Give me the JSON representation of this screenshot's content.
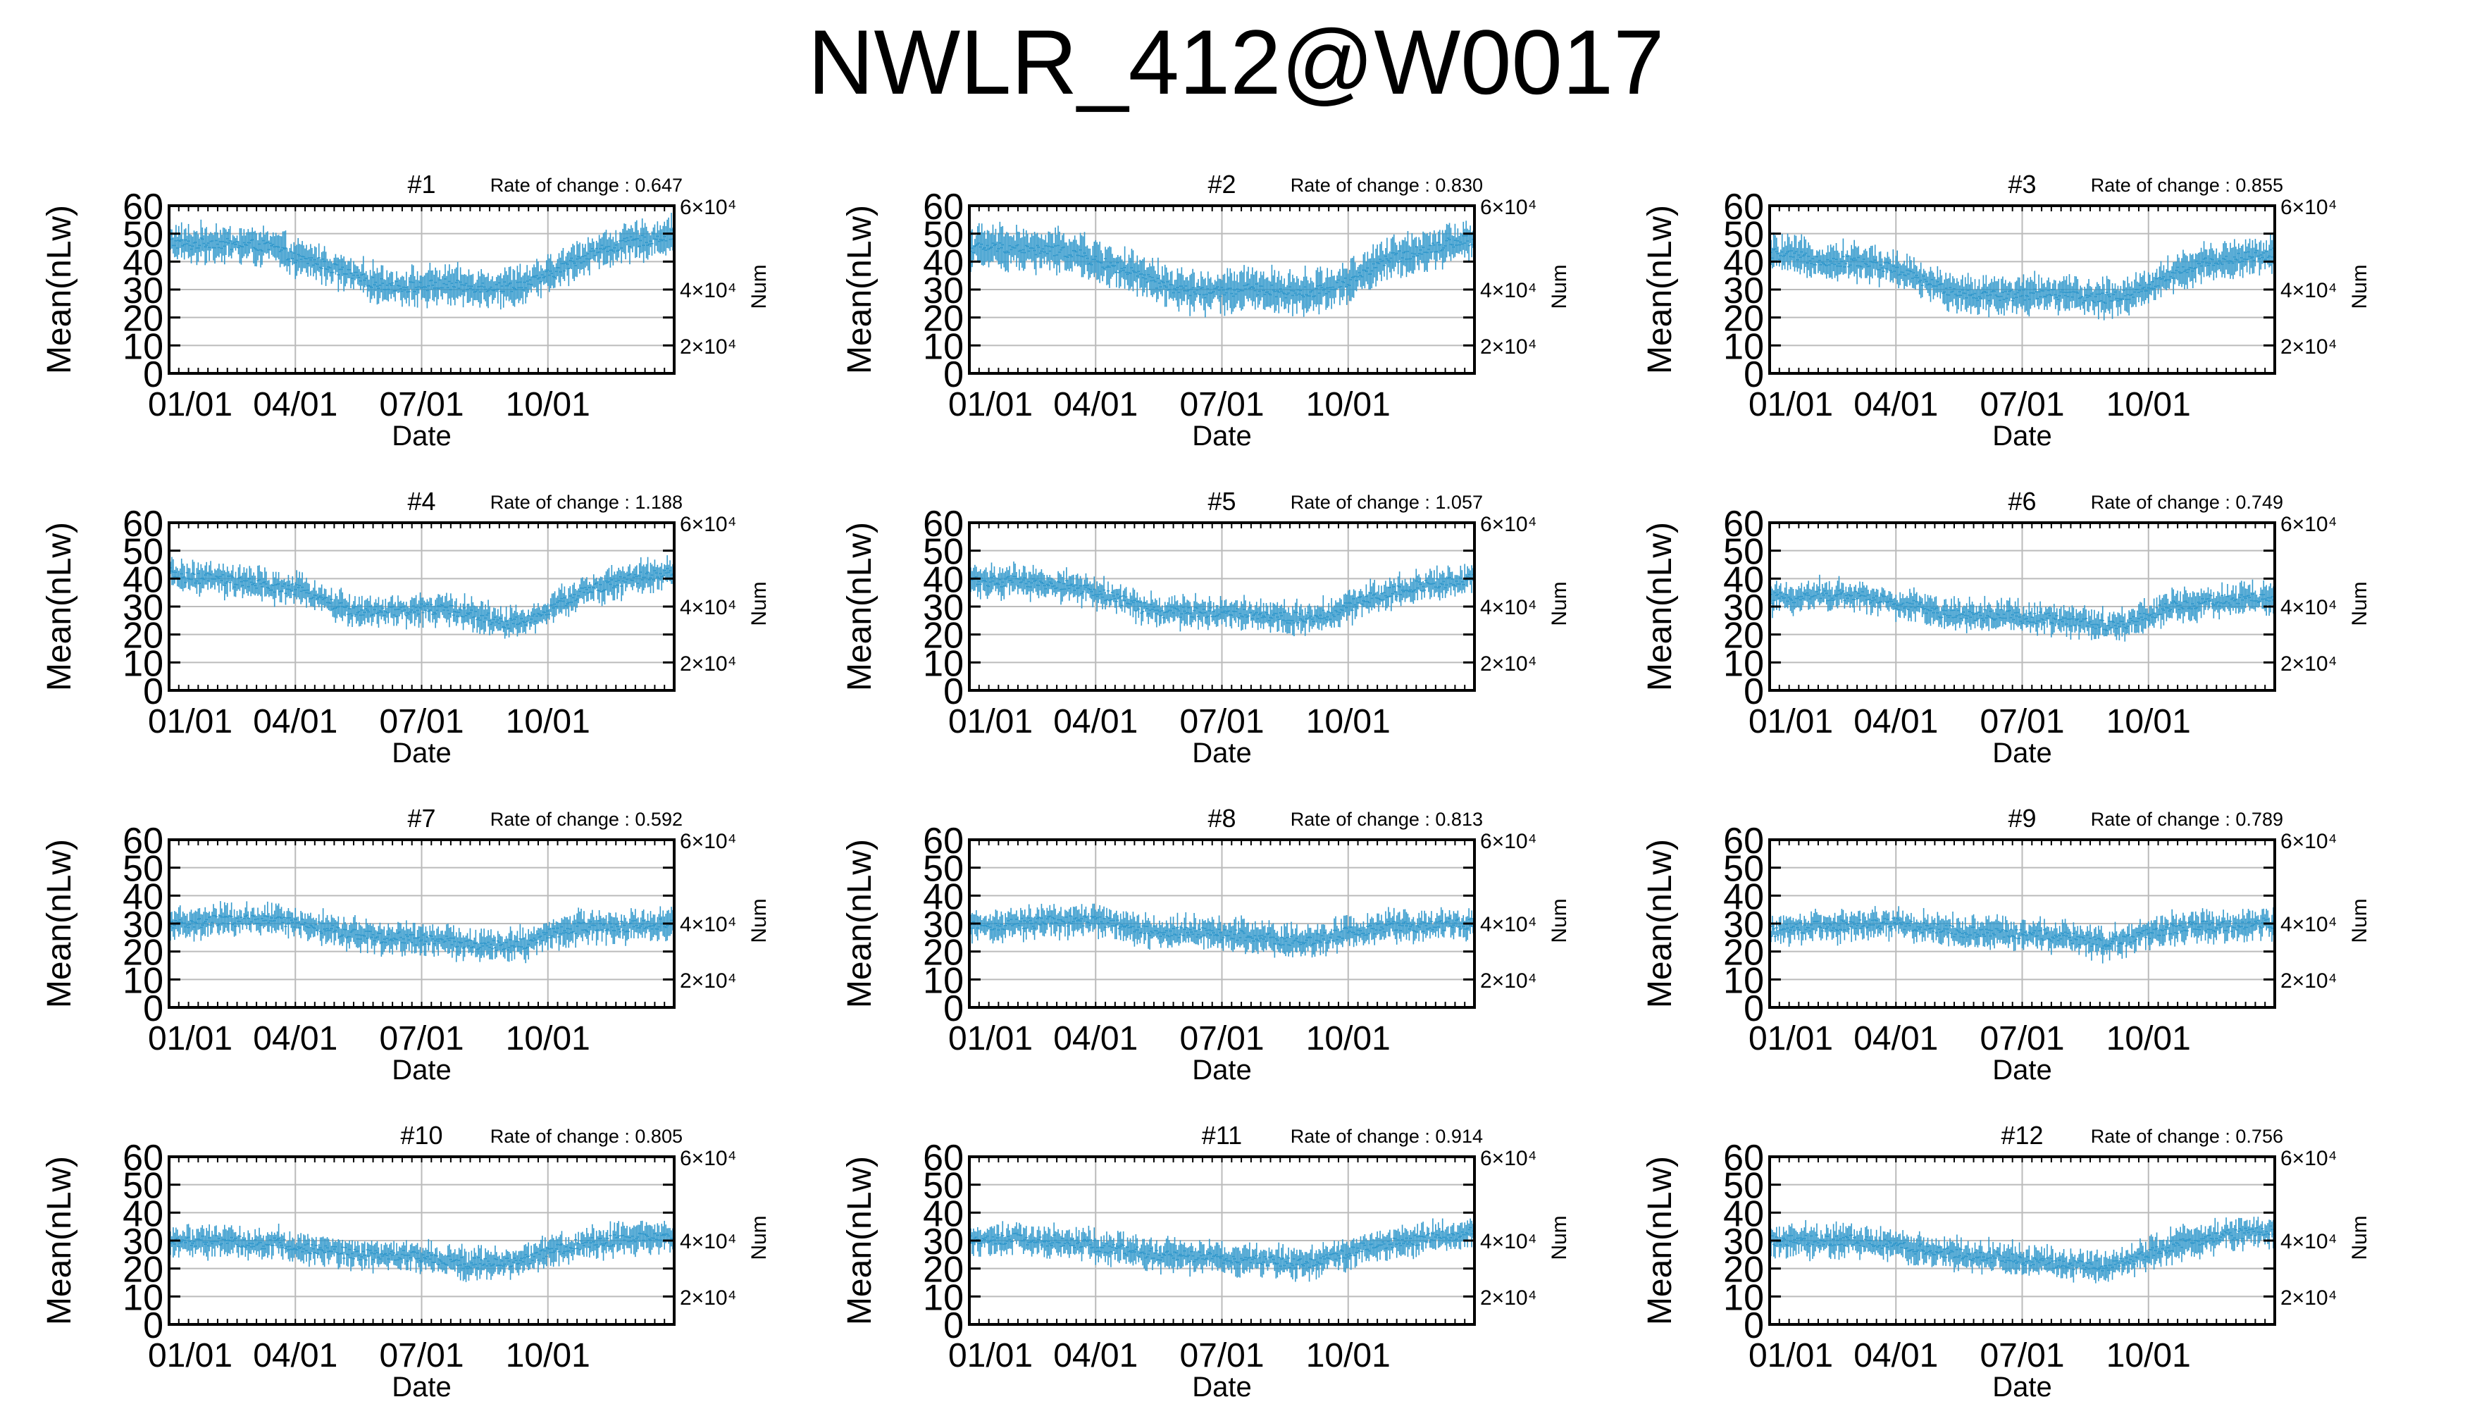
{
  "title": "NWLR_412@W0017",
  "style": {
    "series_color": "#3399cc",
    "grid_color": "#bbbbbb",
    "axis_color": "#000000"
  },
  "chart_data": [
    {
      "type": "line",
      "title": "#1",
      "annotation": "Rate of change : 0.647",
      "xlabel": "Date",
      "ylabel": "Mean(nLw)",
      "y2label": "Num",
      "xticks": [
        "01/01",
        "04/01",
        "07/01",
        "10/01"
      ],
      "yticks": [
        0,
        10,
        20,
        30,
        40,
        50,
        60
      ],
      "y2ticks": [
        "2×10⁴",
        "4×10⁴",
        "6×10⁴"
      ],
      "ylim": [
        0,
        60
      ],
      "grid": true,
      "series": [
        {
          "type": "errorbar",
          "x_months": [
            0,
            0.5,
            1,
            1.5,
            2,
            2.5,
            3,
            3.5,
            4,
            4.5,
            5,
            5.5,
            6,
            6.5,
            7,
            7.5,
            8,
            8.5,
            9,
            9.5,
            10,
            10.5,
            11,
            11.5,
            12
          ],
          "mean": [
            47,
            46,
            47,
            46,
            46,
            45,
            41,
            40,
            37,
            34,
            32,
            31,
            31,
            32,
            31,
            31,
            31,
            32,
            35,
            39,
            43,
            45,
            47,
            48,
            50
          ],
          "spread": 6
        }
      ]
    },
    {
      "type": "line",
      "title": "#2",
      "annotation": "Rate of change : 0.830",
      "xlabel": "Date",
      "ylabel": "Mean(nLw)",
      "y2label": "Num",
      "xticks": [
        "01/01",
        "04/01",
        "07/01",
        "10/01"
      ],
      "yticks": [
        0,
        10,
        20,
        30,
        40,
        50,
        60
      ],
      "y2ticks": [
        "2×10⁴",
        "4×10⁴",
        "6×10⁴"
      ],
      "ylim": [
        0,
        60
      ],
      "grid": true,
      "series": [
        {
          "type": "errorbar",
          "x_months": [
            0,
            0.5,
            1,
            1.5,
            2,
            2.5,
            3,
            3.5,
            4,
            4.5,
            5,
            5.5,
            6,
            6.5,
            7,
            7.5,
            8,
            8.5,
            9,
            9.5,
            10,
            10.5,
            11,
            11.5,
            12
          ],
          "mean": [
            45,
            45,
            45,
            44,
            44,
            43,
            40,
            38,
            35,
            32,
            30,
            29,
            29,
            30,
            30,
            29,
            29,
            30,
            33,
            37,
            41,
            43,
            45,
            47,
            48
          ],
          "spread": 7
        }
      ]
    },
    {
      "type": "line",
      "title": "#3",
      "annotation": "Rate of change : 0.855",
      "xlabel": "Date",
      "ylabel": "Mean(nLw)",
      "y2label": "Num",
      "xticks": [
        "01/01",
        "04/01",
        "07/01",
        "10/01"
      ],
      "yticks": [
        0,
        10,
        20,
        30,
        40,
        50,
        60
      ],
      "y2ticks": [
        "2×10⁴",
        "4×10⁴",
        "6×10⁴"
      ],
      "ylim": [
        0,
        60
      ],
      "grid": true,
      "series": [
        {
          "type": "errorbar",
          "x_months": [
            0,
            0.5,
            1,
            1.5,
            2,
            2.5,
            3,
            3.5,
            4,
            4.5,
            5,
            5.5,
            6,
            6.5,
            7,
            7.5,
            8,
            8.5,
            9,
            9.5,
            10,
            10.5,
            11,
            11.5,
            12
          ],
          "mean": [
            43,
            42,
            41,
            40,
            40,
            39,
            37,
            34,
            31,
            29,
            28,
            28,
            28,
            29,
            28,
            27,
            27,
            28,
            31,
            35,
            38,
            40,
            41,
            42,
            43
          ],
          "spread": 6
        }
      ]
    },
    {
      "type": "line",
      "title": "#4",
      "annotation": "Rate of change : 1.188",
      "xlabel": "Date",
      "ylabel": "Mean(nLw)",
      "y2label": "Num",
      "xticks": [
        "01/01",
        "04/01",
        "07/01",
        "10/01"
      ],
      "yticks": [
        0,
        10,
        20,
        30,
        40,
        50,
        60
      ],
      "y2ticks": [
        "2×10⁴",
        "4×10⁴",
        "6×10⁴"
      ],
      "ylim": [
        0,
        60
      ],
      "grid": true,
      "series": [
        {
          "type": "errorbar",
          "x_months": [
            0,
            0.5,
            1,
            1.5,
            2,
            2.5,
            3,
            3.5,
            4,
            4.5,
            5,
            5.5,
            6,
            6.5,
            7,
            7.5,
            8,
            8.5,
            9,
            9.5,
            10,
            10.5,
            11,
            11.5,
            12
          ],
          "mean": [
            42,
            40,
            40,
            39,
            38,
            37,
            36,
            34,
            30,
            28,
            28,
            28,
            29,
            29,
            28,
            26,
            24,
            25,
            28,
            33,
            36,
            38,
            40,
            41,
            42
          ],
          "spread": 5
        }
      ]
    },
    {
      "type": "line",
      "title": "#5",
      "annotation": "Rate of change : 1.057",
      "xlabel": "Date",
      "ylabel": "Mean(nLw)",
      "y2label": "Num",
      "xticks": [
        "01/01",
        "04/01",
        "07/01",
        "10/01"
      ],
      "yticks": [
        0,
        10,
        20,
        30,
        40,
        50,
        60
      ],
      "y2ticks": [
        "2×10⁴",
        "4×10⁴",
        "6×10⁴"
      ],
      "ylim": [
        0,
        60
      ],
      "grid": true,
      "series": [
        {
          "type": "errorbar",
          "x_months": [
            0,
            0.5,
            1,
            1.5,
            2,
            2.5,
            3,
            3.5,
            4,
            4.5,
            5,
            5.5,
            6,
            6.5,
            7,
            7.5,
            8,
            8.5,
            9,
            9.5,
            10,
            10.5,
            11,
            11.5,
            12
          ],
          "mean": [
            40,
            39,
            39,
            38,
            38,
            37,
            35,
            33,
            30,
            28,
            28,
            28,
            28,
            28,
            27,
            26,
            26,
            27,
            30,
            33,
            35,
            37,
            38,
            39,
            40
          ],
          "spread": 5
        }
      ]
    },
    {
      "type": "line",
      "title": "#6",
      "annotation": "Rate of change : 0.749",
      "xlabel": "Date",
      "ylabel": "Mean(nLw)",
      "y2label": "Num",
      "xticks": [
        "01/01",
        "04/01",
        "07/01",
        "10/01"
      ],
      "yticks": [
        0,
        10,
        20,
        30,
        40,
        50,
        60
      ],
      "y2ticks": [
        "2×10⁴",
        "4×10⁴",
        "6×10⁴"
      ],
      "ylim": [
        0,
        60
      ],
      "grid": true,
      "series": [
        {
          "type": "errorbar",
          "x_months": [
            0,
            0.5,
            1,
            1.5,
            2,
            2.5,
            3,
            3.5,
            4,
            4.5,
            5,
            5.5,
            6,
            6.5,
            7,
            7.5,
            8,
            8.5,
            9,
            9.5,
            10,
            10.5,
            11,
            11.5,
            12
          ],
          "mean": [
            33,
            33,
            34,
            34,
            34,
            33,
            31,
            30,
            28,
            27,
            27,
            27,
            26,
            26,
            25,
            24,
            23,
            24,
            27,
            30,
            31,
            32,
            32,
            33,
            33
          ],
          "spread": 5
        }
      ]
    },
    {
      "type": "line",
      "title": "#7",
      "annotation": "Rate of change : 0.592",
      "xlabel": "Date",
      "ylabel": "Mean(nLw)",
      "y2label": "Num",
      "xticks": [
        "01/01",
        "04/01",
        "07/01",
        "10/01"
      ],
      "yticks": [
        0,
        10,
        20,
        30,
        40,
        50,
        60
      ],
      "y2ticks": [
        "2×10⁴",
        "4×10⁴",
        "6×10⁴"
      ],
      "ylim": [
        0,
        60
      ],
      "grid": true,
      "series": [
        {
          "type": "errorbar",
          "x_months": [
            0,
            0.5,
            1,
            1.5,
            2,
            2.5,
            3,
            3.5,
            4,
            4.5,
            5,
            5.5,
            6,
            6.5,
            7,
            7.5,
            8,
            8.5,
            9,
            9.5,
            10,
            10.5,
            11,
            11.5,
            12
          ],
          "mean": [
            30,
            30,
            31,
            31,
            31,
            31,
            30,
            29,
            27,
            26,
            25,
            25,
            24,
            24,
            23,
            22,
            22,
            23,
            26,
            28,
            29,
            29,
            29,
            30,
            30
          ],
          "spread": 5
        }
      ]
    },
    {
      "type": "line",
      "title": "#8",
      "annotation": "Rate of change : 0.813",
      "xlabel": "Date",
      "ylabel": "Mean(nLw)",
      "y2label": "Num",
      "xticks": [
        "01/01",
        "04/01",
        "07/01",
        "10/01"
      ],
      "yticks": [
        0,
        10,
        20,
        30,
        40,
        50,
        60
      ],
      "y2ticks": [
        "2×10⁴",
        "4×10⁴",
        "6×10⁴"
      ],
      "ylim": [
        0,
        60
      ],
      "grid": true,
      "series": [
        {
          "type": "errorbar",
          "x_months": [
            0,
            0.5,
            1,
            1.5,
            2,
            2.5,
            3,
            3.5,
            4,
            4.5,
            5,
            5.5,
            6,
            6.5,
            7,
            7.5,
            8,
            8.5,
            9,
            9.5,
            10,
            10.5,
            11,
            11.5,
            12
          ],
          "mean": [
            29,
            29,
            30,
            30,
            31,
            31,
            31,
            30,
            28,
            27,
            27,
            27,
            26,
            26,
            25,
            24,
            24,
            25,
            27,
            28,
            29,
            29,
            29,
            30,
            30
          ],
          "spread": 5
        }
      ]
    },
    {
      "type": "line",
      "title": "#9",
      "annotation": "Rate of change : 0.789",
      "xlabel": "Date",
      "ylabel": "Mean(nLw)",
      "y2label": "Num",
      "xticks": [
        "01/01",
        "04/01",
        "07/01",
        "10/01"
      ],
      "yticks": [
        0,
        10,
        20,
        30,
        40,
        50,
        60
      ],
      "y2ticks": [
        "2×10⁴",
        "4×10⁴",
        "6×10⁴"
      ],
      "ylim": [
        0,
        60
      ],
      "grid": true,
      "series": [
        {
          "type": "errorbar",
          "x_months": [
            0,
            0.5,
            1,
            1.5,
            2,
            2.5,
            3,
            3.5,
            4,
            4.5,
            5,
            5.5,
            6,
            6.5,
            7,
            7.5,
            8,
            8.5,
            9,
            9.5,
            10,
            10.5,
            11,
            11.5,
            12
          ],
          "mean": [
            27,
            28,
            29,
            29,
            30,
            30,
            30,
            29,
            28,
            27,
            27,
            27,
            26,
            26,
            25,
            24,
            23,
            24,
            26,
            28,
            29,
            29,
            29,
            30,
            30
          ],
          "spread": 5
        }
      ]
    },
    {
      "type": "line",
      "title": "#10",
      "annotation": "Rate of change : 0.805",
      "xlabel": "Date",
      "ylabel": "Mean(nLw)",
      "y2label": "Num",
      "xticks": [
        "01/01",
        "04/01",
        "07/01",
        "10/01"
      ],
      "yticks": [
        0,
        10,
        20,
        30,
        40,
        50,
        60
      ],
      "y2ticks": [
        "2×10⁴",
        "4×10⁴",
        "6×10⁴"
      ],
      "ylim": [
        0,
        60
      ],
      "grid": true,
      "series": [
        {
          "type": "errorbar",
          "x_months": [
            0,
            0.5,
            1,
            1.5,
            2,
            2.5,
            3,
            3.5,
            4,
            4.5,
            5,
            5.5,
            6,
            6.5,
            7,
            7.5,
            8,
            8.5,
            9,
            9.5,
            10,
            10.5,
            11,
            11.5,
            12
          ],
          "mean": [
            29,
            30,
            30,
            30,
            29,
            29,
            28,
            27,
            26,
            25,
            25,
            25,
            24,
            23,
            22,
            22,
            22,
            23,
            26,
            28,
            29,
            30,
            31,
            31,
            32
          ],
          "spread": 5
        }
      ]
    },
    {
      "type": "line",
      "title": "#11",
      "annotation": "Rate of change : 0.914",
      "xlabel": "Date",
      "ylabel": "Mean(nLw)",
      "y2label": "Num",
      "xticks": [
        "01/01",
        "04/01",
        "07/01",
        "10/01"
      ],
      "yticks": [
        0,
        10,
        20,
        30,
        40,
        50,
        60
      ],
      "y2ticks": [
        "2×10⁴",
        "4×10⁴",
        "6×10⁴"
      ],
      "ylim": [
        0,
        60
      ],
      "grid": true,
      "series": [
        {
          "type": "errorbar",
          "x_months": [
            0,
            0.5,
            1,
            1.5,
            2,
            2.5,
            3,
            3.5,
            4,
            4.5,
            5,
            5.5,
            6,
            6.5,
            7,
            7.5,
            8,
            8.5,
            9,
            9.5,
            10,
            10.5,
            11,
            11.5,
            12
          ],
          "mean": [
            30,
            30,
            31,
            30,
            30,
            29,
            28,
            27,
            26,
            25,
            25,
            24,
            24,
            23,
            23,
            22,
            22,
            23,
            26,
            28,
            29,
            30,
            31,
            32,
            33
          ],
          "spread": 5
        }
      ]
    },
    {
      "type": "line",
      "title": "#12",
      "annotation": "Rate of change : 0.756",
      "xlabel": "Date",
      "ylabel": "Mean(nLw)",
      "y2label": "Num",
      "xticks": [
        "01/01",
        "04/01",
        "07/01",
        "10/01"
      ],
      "yticks": [
        0,
        10,
        20,
        30,
        40,
        50,
        60
      ],
      "y2ticks": [
        "2×10⁴",
        "4×10⁴",
        "6×10⁴"
      ],
      "ylim": [
        0,
        60
      ],
      "grid": true,
      "series": [
        {
          "type": "errorbar",
          "x_months": [
            0,
            0.5,
            1,
            1.5,
            2,
            2.5,
            3,
            3.5,
            4,
            4.5,
            5,
            5.5,
            6,
            6.5,
            7,
            7.5,
            8,
            8.5,
            9,
            9.5,
            10,
            10.5,
            11,
            11.5,
            12
          ],
          "mean": [
            30,
            30,
            30,
            30,
            30,
            29,
            28,
            27,
            26,
            25,
            24,
            24,
            23,
            22,
            22,
            21,
            21,
            22,
            25,
            28,
            30,
            31,
            32,
            33,
            34
          ],
          "spread": 5
        }
      ]
    }
  ]
}
